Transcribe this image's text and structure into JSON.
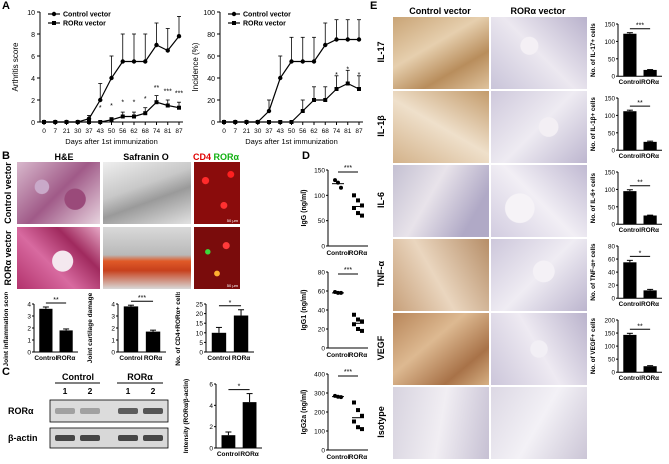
{
  "panels": {
    "A": {
      "label": "A",
      "xlabel": "Days after 1st immunization",
      "xticks": [
        "0",
        "7",
        "21",
        "30",
        "37",
        "43",
        "50",
        "56",
        "62",
        "68",
        "74",
        "81",
        "87"
      ],
      "legend": [
        "Control vector",
        "RORα vector"
      ],
      "arthritis": {
        "ylabel": "Arthritis score",
        "yticks": [
          "0",
          "2",
          "4",
          "6",
          "8",
          "10"
        ],
        "ylim": [
          0,
          10
        ],
        "control": [
          0,
          0,
          0,
          0,
          0.3,
          2,
          4,
          5.5,
          5.5,
          5.5,
          7,
          6.5,
          7.8
        ],
        "control_err": [
          0,
          0,
          0,
          0,
          0.3,
          1.5,
          2,
          2.5,
          2.5,
          2.5,
          2,
          2,
          1.8
        ],
        "rora": [
          0,
          0,
          0,
          0,
          0,
          0,
          0.2,
          0.5,
          0.5,
          0.8,
          1.8,
          1.5,
          1.3
        ],
        "rora_err": [
          0,
          0,
          0,
          0,
          0,
          0,
          0.2,
          0.4,
          0.4,
          0.5,
          0.6,
          0.5,
          0.5
        ],
        "stars": [
          "*",
          "*",
          "*",
          "*",
          "*",
          "**",
          "***",
          "***"
        ]
      },
      "incidence": {
        "ylabel": "Incidence (%)",
        "yticks": [
          "0",
          "20",
          "40",
          "60",
          "80",
          "100"
        ],
        "ylim": [
          0,
          100
        ],
        "control": [
          0,
          0,
          0,
          0,
          10,
          40,
          55,
          55,
          55,
          70,
          75,
          75,
          75
        ],
        "control_err": [
          0,
          0,
          0,
          0,
          10,
          20,
          22,
          22,
          22,
          20,
          18,
          18,
          18
        ],
        "rora": [
          0,
          0,
          0,
          0,
          0,
          0,
          0,
          10,
          20,
          20,
          30,
          35,
          30
        ],
        "rora_err": [
          0,
          0,
          0,
          0,
          0,
          0,
          0,
          10,
          12,
          12,
          12,
          12,
          12
        ],
        "stars": [
          "*",
          "*",
          "*"
        ]
      }
    },
    "B": {
      "label": "B",
      "col_headers": [
        "H&E",
        "Safranin O"
      ],
      "stain_cd4": "CD4",
      "stain_rora": "RORα",
      "row_labels": [
        "Control vector",
        "RORα vector"
      ],
      "scale": "50 μm",
      "bars": [
        {
          "ylabel": "Joint inflammation score",
          "yticks": [
            "0",
            "1",
            "2",
            "3",
            "4"
          ],
          "ylim": [
            0,
            4
          ],
          "values": [
            3.6,
            1.8
          ],
          "err": [
            0.15,
            0.12
          ],
          "sig": "**"
        },
        {
          "ylabel": "Joint cartilage damage",
          "yticks": [
            "0",
            "1",
            "2",
            "3",
            "4"
          ],
          "ylim": [
            0,
            4
          ],
          "values": [
            3.8,
            1.7
          ],
          "err": [
            0.1,
            0.12
          ],
          "sig": "***"
        },
        {
          "ylabel": "No. of CD4+RORα+ cells",
          "yticks": [
            "0",
            "5",
            "10",
            "15",
            "20",
            "25"
          ],
          "ylim": [
            0,
            25
          ],
          "values": [
            10,
            19
          ],
          "err": [
            2.8,
            3
          ],
          "sig": "*"
        }
      ],
      "categories": [
        "Control",
        "RORα"
      ]
    },
    "C": {
      "label": "C",
      "groups": [
        "Control",
        "RORα"
      ],
      "lanes": [
        "1",
        "2",
        "1",
        "2"
      ],
      "rows": [
        "RORα",
        "β-actin"
      ],
      "bar": {
        "ylabel": "Intensity (RORα/β-actin)",
        "yticks": [
          "0",
          "2",
          "4",
          "6"
        ],
        "ylim": [
          0,
          6
        ],
        "values": [
          1.2,
          4.3
        ],
        "err": [
          0.3,
          0.8
        ],
        "sig": "*"
      },
      "categories": [
        "Control",
        "RORα"
      ]
    },
    "D": {
      "label": "D",
      "categories": [
        "Control",
        "RORα"
      ],
      "plots": [
        {
          "ylabel": "IgG (ng/ml)",
          "yticks": [
            "0",
            "50",
            "100",
            "150"
          ],
          "ylim": [
            0,
            150
          ],
          "control": [
            130,
            125,
            115
          ],
          "rora": [
            100,
            90,
            80,
            75,
            65,
            60
          ],
          "control_mean": 123,
          "rora_mean": 78,
          "sig": "***"
        },
        {
          "ylabel": "IgG1 (ng/ml)",
          "yticks": [
            "0",
            "20",
            "40",
            "60",
            "80"
          ],
          "ylim": [
            0,
            80
          ],
          "control": [
            59,
            58,
            58
          ],
          "rora": [
            35,
            30,
            28,
            25,
            20,
            18
          ],
          "control_mean": 58,
          "rora_mean": 26,
          "sig": "***"
        },
        {
          "ylabel": "IgG2a (ng/ml)",
          "yticks": [
            "0",
            "100",
            "200",
            "300",
            "400"
          ],
          "ylim": [
            0,
            400
          ],
          "control": [
            285,
            280,
            278
          ],
          "rora": [
            250,
            210,
            180,
            150,
            120,
            110
          ],
          "control_mean": 281,
          "rora_mean": 170,
          "sig": "***"
        }
      ]
    },
    "E": {
      "label": "E",
      "col_headers": [
        "Control vector",
        "RORα vector"
      ],
      "rows": [
        {
          "label": "IL-17",
          "ylabel": "No. of IL-17+ cells",
          "yticks": [
            "0",
            "50",
            "100",
            "150"
          ],
          "ylim": [
            0,
            150
          ],
          "values": [
            122,
            18
          ],
          "err": [
            3,
            1
          ],
          "sig": "***"
        },
        {
          "label": "IL-1β",
          "ylabel": "No. of IL-1β+ cells",
          "yticks": [
            "0",
            "50",
            "100",
            "150"
          ],
          "ylim": [
            0,
            150
          ],
          "values": [
            112,
            24
          ],
          "err": [
            3,
            2
          ],
          "sig": "**"
        },
        {
          "label": "IL-6",
          "ylabel": "No. of IL-6+ cells",
          "yticks": [
            "0",
            "50",
            "100",
            "150"
          ],
          "ylim": [
            0,
            150
          ],
          "values": [
            95,
            25
          ],
          "err": [
            4,
            1
          ],
          "sig": "**"
        },
        {
          "label": "TNF-α",
          "ylabel": "No. of TNF-α+ cells",
          "yticks": [
            "0",
            "20",
            "40",
            "60",
            "80"
          ],
          "ylim": [
            0,
            80
          ],
          "values": [
            55,
            12
          ],
          "err": [
            3,
            1.5
          ],
          "sig": "*"
        },
        {
          "label": "VEGF",
          "ylabel": "No. of VEGF+ cells",
          "yticks": [
            "0",
            "50",
            "100",
            "150",
            "200"
          ],
          "ylim": [
            0,
            200
          ],
          "values": [
            143,
            23
          ],
          "err": [
            6,
            2
          ],
          "sig": "**"
        },
        {
          "label": "Isotype"
        }
      ],
      "categories": [
        "Control",
        "RORα"
      ]
    }
  }
}
